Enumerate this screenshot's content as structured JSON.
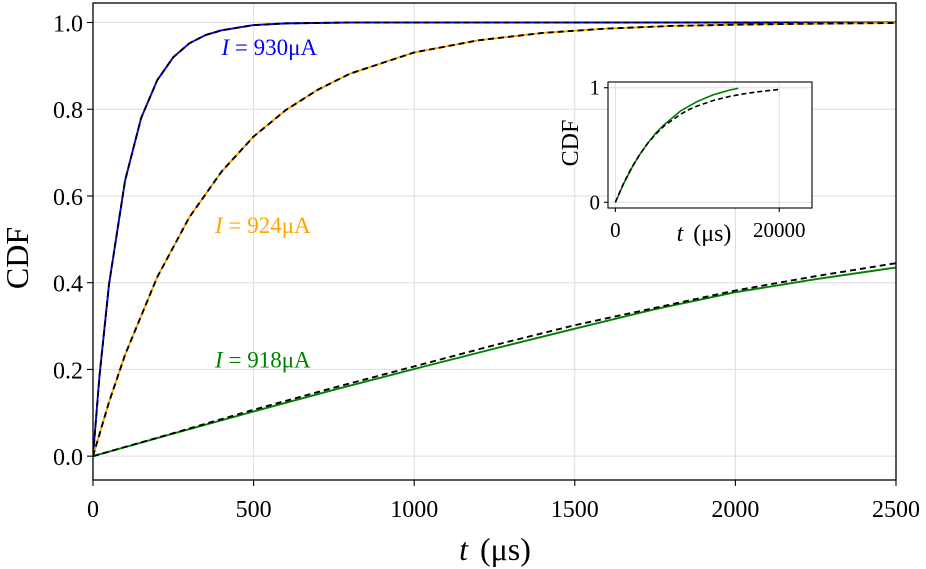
{
  "chart_data": [
    {
      "type": "line",
      "xlabel": {
        "var": "t",
        "unit": "(μs)"
      },
      "ylabel": "CDF",
      "xlim": [
        0,
        2500
      ],
      "ylim": [
        -0.055,
        1.045
      ],
      "xticks": [
        0,
        500,
        1000,
        1500,
        2000,
        2500
      ],
      "xtick_labels": [
        "0",
        "500",
        "1000",
        "1500",
        "2000",
        "2500"
      ],
      "yticks": [
        0,
        0.2,
        0.4,
        0.6,
        0.8,
        1.0
      ],
      "ytick_labels": [
        "0.0",
        "0.2",
        "0.4",
        "0.6",
        "0.8",
        "1.0"
      ],
      "grid": true,
      "series": [
        {
          "color": "#0000ff",
          "style": "solid",
          "x": [
            0,
            20,
            50,
            100,
            150,
            200,
            250,
            300,
            350,
            400,
            500,
            600,
            800,
            1000,
            1500,
            2000,
            2500
          ],
          "y": [
            0,
            0.183,
            0.397,
            0.636,
            0.78,
            0.867,
            0.92,
            0.952,
            0.971,
            0.982,
            0.994,
            0.998,
            1.0,
            1.0,
            1.0,
            1.0,
            1.0
          ]
        },
        {
          "color": "#000000",
          "style": "dashed",
          "x": [
            0,
            20,
            50,
            100,
            150,
            200,
            250,
            300,
            350,
            400,
            500,
            600,
            800,
            1000,
            1500,
            2000,
            2500
          ],
          "y": [
            0,
            0.183,
            0.397,
            0.636,
            0.78,
            0.867,
            0.92,
            0.952,
            0.971,
            0.982,
            0.994,
            0.998,
            1.0,
            1.0,
            1.0,
            1.0,
            1.0
          ]
        },
        {
          "color": "#ffa500",
          "style": "solid",
          "x": [
            0,
            50,
            100,
            200,
            300,
            400,
            500,
            600,
            700,
            800,
            1000,
            1200,
            1400,
            1600,
            1800,
            2000,
            2200,
            2500
          ],
          "y": [
            0,
            0.125,
            0.234,
            0.413,
            0.551,
            0.656,
            0.737,
            0.798,
            0.845,
            0.882,
            0.931,
            0.959,
            0.976,
            0.986,
            0.992,
            0.995,
            0.997,
            0.999
          ]
        },
        {
          "color": "#000000",
          "style": "dashed",
          "x": [
            0,
            50,
            100,
            200,
            300,
            400,
            500,
            600,
            700,
            800,
            1000,
            1200,
            1400,
            1600,
            1800,
            2000,
            2200,
            2500
          ],
          "y": [
            0,
            0.125,
            0.234,
            0.413,
            0.551,
            0.656,
            0.737,
            0.798,
            0.845,
            0.882,
            0.931,
            0.959,
            0.976,
            0.986,
            0.992,
            0.995,
            0.997,
            0.999
          ]
        },
        {
          "color": "#008000",
          "style": "solid",
          "x": [
            0,
            250,
            500,
            750,
            1000,
            1250,
            1500,
            1750,
            2000,
            2250,
            2500
          ],
          "y": [
            0,
            0.052,
            0.103,
            0.153,
            0.201,
            0.248,
            0.294,
            0.339,
            0.378,
            0.408,
            0.435
          ]
        },
        {
          "color": "#000000",
          "style": "dashed",
          "x": [
            0,
            250,
            500,
            750,
            1000,
            1250,
            1500,
            1750,
            2000,
            2250,
            2500
          ],
          "y": [
            0,
            0.053,
            0.107,
            0.158,
            0.207,
            0.256,
            0.302,
            0.342,
            0.382,
            0.415,
            0.445
          ]
        }
      ],
      "annotations": [
        {
          "var": "I",
          "rest": " = 930μA",
          "color": "#0000ff",
          "x": 400,
          "y": 0.925
        },
        {
          "var": "I",
          "rest": " = 924μA",
          "color": "#ffa500",
          "x": 380,
          "y": 0.515
        },
        {
          "var": "I",
          "rest": " = 918μA",
          "color": "#008000",
          "x": 380,
          "y": 0.205
        }
      ]
    },
    {
      "type": "line",
      "inset": true,
      "xlabel": {
        "var": "t",
        "unit": "(μs)"
      },
      "ylabel": "CDF",
      "xlim": [
        -900,
        24000
      ],
      "ylim": [
        -0.05,
        1.05
      ],
      "xticks": [
        0,
        20000
      ],
      "xtick_labels": [
        "0",
        "20000"
      ],
      "yticks": [
        0,
        1
      ],
      "ytick_labels": [
        "0",
        "1"
      ],
      "grid": true,
      "series": [
        {
          "color": "#008000",
          "style": "solid",
          "x": [
            0,
            1000,
            2000,
            3000,
            4000,
            5000,
            6000,
            7000,
            8000,
            9000,
            10000,
            11000,
            12000,
            13000,
            14000,
            15000
          ],
          "y": [
            0,
            0.16,
            0.3,
            0.42,
            0.52,
            0.61,
            0.68,
            0.74,
            0.8,
            0.84,
            0.88,
            0.91,
            0.94,
            0.96,
            0.98,
            0.995
          ]
        },
        {
          "color": "#000000",
          "style": "dashed",
          "x": [
            0,
            1000,
            2000,
            3000,
            4000,
            5000,
            6000,
            7000,
            8000,
            9000,
            10000,
            12000,
            14000,
            16000,
            18000,
            20000
          ],
          "y": [
            0,
            0.165,
            0.305,
            0.42,
            0.52,
            0.6,
            0.67,
            0.72,
            0.77,
            0.81,
            0.84,
            0.89,
            0.925,
            0.95,
            0.97,
            0.985
          ]
        }
      ]
    }
  ]
}
